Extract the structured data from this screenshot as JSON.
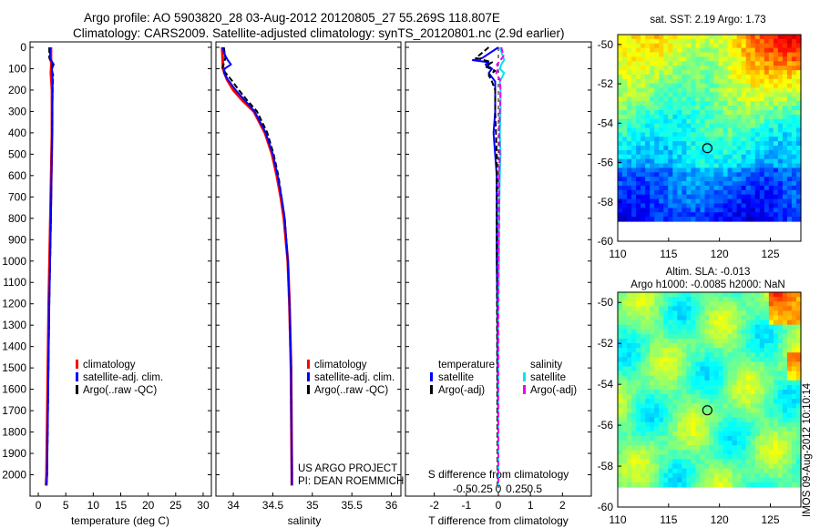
{
  "header": {
    "line1": "Argo profile: AO 5903820_28 03-Aug-2012 20120805_27 55.269S 118.807E",
    "line2": "Climatology: CARS2009. Satellite-adjusted climatology: synTS_20120801.nc (2.9d earlier)"
  },
  "project": {
    "line1": "US ARGO PROJECT",
    "line2": "PI: DEAN ROEMMICH"
  },
  "stamp": "IMOS 09-Aug-2012 10:10:14",
  "colors": {
    "climatology": "#ff0000",
    "satellite": "#0000ff",
    "argo": "#000000",
    "s_satellite": "#00e5ee",
    "s_argo": "#ee00ee"
  },
  "chart_data": [
    {
      "type": "line",
      "id": "temperature",
      "xlabel": "temperature (deg C)",
      "ylabel": "",
      "xlim": [
        -1.5,
        31.5
      ],
      "ylim": [
        2100,
        0
      ],
      "xticks": [
        "0",
        "5",
        "10",
        "15",
        "20",
        "25",
        "30"
      ],
      "xtick_values": [
        0,
        5,
        10,
        15,
        20,
        25,
        30
      ],
      "yticks": [
        "0",
        "100",
        "200",
        "300",
        "400",
        "500",
        "600",
        "700",
        "800",
        "900",
        "1000",
        "1100",
        "1200",
        "1300",
        "1400",
        "1500",
        "1600",
        "1700",
        "1800",
        "1900",
        "2000"
      ],
      "ytick_values": [
        0,
        100,
        200,
        300,
        400,
        500,
        600,
        700,
        800,
        900,
        1000,
        1100,
        1200,
        1300,
        1400,
        1500,
        1600,
        1700,
        1800,
        1900,
        2000
      ],
      "legend": [
        "climatology",
        "satellite-adj. clim.",
        "Argo(..raw -QC)"
      ],
      "series": [
        {
          "name": "climatology",
          "style": "solid",
          "depth": [
            0,
            60,
            80,
            120,
            200,
            400,
            800,
            1200,
            1600,
            2000,
            2050
          ],
          "values": [
            2.3,
            2.3,
            2.4,
            2.3,
            2.5,
            2.5,
            2.2,
            1.9,
            1.7,
            1.5,
            1.4
          ]
        },
        {
          "name": "Argo(..raw -QC)",
          "style": "dashed",
          "depth": [
            0,
            50,
            80,
            100,
            130,
            200,
            400,
            800,
            1200,
            1600,
            2000,
            2050
          ],
          "values": [
            2.0,
            2.0,
            2.6,
            2.4,
            2.7,
            2.6,
            2.5,
            2.3,
            2.0,
            1.8,
            1.6,
            1.5
          ]
        },
        {
          "name": "satellite-adj. clim.",
          "style": "solid",
          "depth": [
            0,
            50,
            80,
            100,
            150,
            200,
            400,
            800,
            1200,
            1600,
            2000,
            2050
          ],
          "values": [
            2.2,
            2.1,
            2.8,
            2.5,
            2.6,
            2.6,
            2.5,
            2.3,
            2.0,
            1.8,
            1.6,
            1.5
          ]
        }
      ]
    },
    {
      "type": "line",
      "id": "salinity",
      "xlabel": "salinity",
      "xlim": [
        33.78,
        36.12
      ],
      "ylim": [
        2100,
        0
      ],
      "xticks": [
        "34",
        "34.5",
        "35",
        "35.5",
        "36"
      ],
      "xtick_values": [
        34,
        34.5,
        35,
        35.5,
        36
      ],
      "legend": [
        "climatology",
        "satellite-adj. clim.",
        "Argo(..raw -QC)"
      ],
      "series": [
        {
          "name": "climatology",
          "style": "solid",
          "depth": [
            0,
            100,
            150,
            200,
            250,
            300,
            400,
            500,
            600,
            700,
            800,
            1000,
            1200,
            1500,
            2000,
            2050
          ],
          "values": [
            33.86,
            33.87,
            33.92,
            34.0,
            34.12,
            34.26,
            34.4,
            34.49,
            34.55,
            34.6,
            34.64,
            34.69,
            34.71,
            34.73,
            34.74,
            34.74
          ]
        },
        {
          "name": "Argo(..raw -QC)",
          "style": "dashed",
          "depth": [
            0,
            50,
            100,
            150,
            200,
            250,
            300,
            400,
            500,
            600,
            700,
            800,
            1000,
            1200,
            1500,
            2000
          ],
          "values": [
            33.88,
            33.9,
            33.86,
            33.97,
            34.07,
            34.18,
            34.3,
            34.43,
            34.51,
            34.57,
            34.61,
            34.65,
            34.69,
            34.71,
            34.73,
            34.74
          ]
        },
        {
          "name": "satellite-adj. clim.",
          "style": "solid",
          "depth": [
            0,
            40,
            60,
            80,
            100,
            120,
            150,
            200,
            250,
            300,
            400,
            500,
            600,
            700,
            800,
            1000,
            1200,
            1500,
            2000,
            2050
          ],
          "values": [
            33.86,
            33.9,
            33.93,
            33.97,
            33.89,
            33.88,
            33.93,
            34.03,
            34.15,
            34.27,
            34.41,
            34.5,
            34.56,
            34.61,
            34.65,
            34.69,
            34.71,
            34.73,
            34.74,
            34.74
          ]
        }
      ]
    },
    {
      "type": "line",
      "id": "difference",
      "xlabel": "T difference from climatology",
      "xlabel_top": "S difference from climatology",
      "xlim": [
        -2.9,
        2.9
      ],
      "ylim": [
        2100,
        0
      ],
      "xticks": [
        "-2",
        "-1",
        "0",
        "1",
        "2"
      ],
      "xtick_values": [
        -2,
        -1,
        0,
        1,
        2
      ],
      "sticks": [
        "-0.5",
        "-0.25",
        "0",
        "0.25",
        "0.5"
      ],
      "stick_values": [
        -0.5,
        -0.25,
        0,
        0.25,
        0.5
      ],
      "legend_groups": {
        "temperature": {
          "title": "temperature",
          "items": [
            "satellite",
            "Argo(-adj)"
          ]
        },
        "salinity": {
          "title": "salinity",
          "items": [
            "satellite",
            "Argo(-adj)"
          ]
        }
      },
      "series": [
        {
          "name": "T satellite",
          "quantity": "temperature",
          "style": "solid",
          "depth": [
            0,
            50,
            60,
            70,
            80,
            100,
            120,
            140,
            160,
            200,
            300,
            400,
            600,
            800,
            1000,
            1200,
            1500,
            1800,
            2050
          ],
          "values": [
            0,
            -0.5,
            -0.8,
            -0.3,
            -0.4,
            -0.2,
            -0.3,
            -0.2,
            -0.1,
            -0.1,
            -0.1,
            -0.15,
            -0.05,
            -0.05,
            -0.05,
            -0.03,
            -0.02,
            0,
            0
          ]
        },
        {
          "name": "T Argo(-adj)",
          "quantity": "temperature",
          "style": "dashed",
          "depth": [
            0,
            50,
            70,
            90,
            110,
            130,
            160,
            200,
            300,
            500,
            800,
            1200,
            1600,
            2050
          ],
          "values": [
            -0.3,
            -0.7,
            -0.2,
            -0.4,
            -0.1,
            -0.3,
            -0.2,
            -0.1,
            -0.1,
            -0.05,
            -0.05,
            -0.04,
            -0.03,
            -0.02
          ]
        },
        {
          "name": "S satellite",
          "quantity": "salinity",
          "style": "solid",
          "depth": [
            0,
            40,
            60,
            80,
            100,
            120,
            140,
            160,
            200,
            300,
            400,
            500,
            600,
            800,
            1000,
            1200,
            1500,
            1800,
            2050
          ],
          "values": [
            0.02,
            0.06,
            0.08,
            0.04,
            0.02,
            0.08,
            0.05,
            0.02,
            0.03,
            0.03,
            0.02,
            0.03,
            0.02,
            0.01,
            0.01,
            0.0,
            0.0,
            0.0,
            0.0
          ]
        },
        {
          "name": "S Argo(-adj)",
          "quantity": "salinity",
          "style": "dashed",
          "depth": [
            0,
            40,
            60,
            80,
            100,
            120,
            150,
            200,
            300,
            400,
            500,
            600,
            800,
            1000,
            1200,
            1500,
            1800,
            2050
          ],
          "values": [
            0.04,
            0.07,
            0.03,
            -0.02,
            0.0,
            -0.03,
            0.02,
            0.03,
            0.02,
            0.01,
            0.02,
            0.01,
            0.01,
            0.0,
            0.0,
            0.0,
            0.0,
            0.0
          ]
        }
      ]
    },
    {
      "type": "heatmap",
      "id": "sst_map",
      "title": "sat. SST: 2.19 Argo: 1.73",
      "xlim": [
        110,
        128
      ],
      "ylim": [
        -60,
        -49.5
      ],
      "xticks": [
        "110",
        "115",
        "120",
        "125"
      ],
      "xtick_values": [
        110,
        115,
        120,
        125
      ],
      "yticks": [
        "-50",
        "-52",
        "-54",
        "-56",
        "-58",
        "-60"
      ],
      "ytick_values": [
        -50,
        -52,
        -54,
        -56,
        -58,
        -60
      ],
      "marker": {
        "lon": 118.807,
        "lat": -55.269
      }
    },
    {
      "type": "heatmap",
      "id": "sla_map",
      "title": "Altim. SLA: -0.013",
      "subtitle": "Argo h1000: -0.0085 h2000: NaN",
      "xlim": [
        110,
        128
      ],
      "ylim": [
        -60,
        -49.5
      ],
      "xticks": [
        "110",
        "115",
        "120",
        "125"
      ],
      "xtick_values": [
        110,
        115,
        120,
        125
      ],
      "yticks": [
        "-50",
        "-52",
        "-54",
        "-56",
        "-58",
        "-60"
      ],
      "ytick_values": [
        -50,
        -52,
        -54,
        -56,
        -58,
        -60
      ],
      "marker": {
        "lon": 118.807,
        "lat": -55.269
      }
    }
  ]
}
